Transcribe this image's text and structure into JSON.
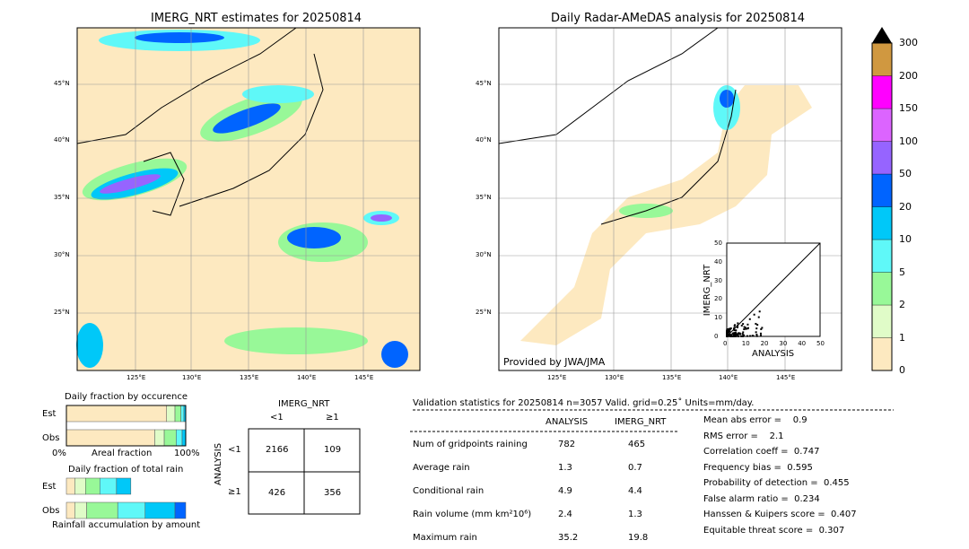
{
  "chart_data": [
    {
      "type": "heatmap",
      "title": "IMERG_NRT estimates for 20250814",
      "lon_ticks": [
        "125°E",
        "130°E",
        "135°E",
        "140°E",
        "145°E"
      ],
      "lat_ticks": [
        "45°N",
        "40°N",
        "35°N",
        "30°N",
        "25°N"
      ]
    },
    {
      "type": "heatmap",
      "title": "Daily Radar-AMeDAS analysis for 20250814",
      "lon_ticks": [
        "125°E",
        "130°E",
        "135°E",
        "140°E",
        "145°E"
      ],
      "lat_ticks": [
        "45°N",
        "40°N",
        "35°N",
        "30°N",
        "25°N"
      ],
      "credit": "Provided by JWA/JMA",
      "inset": {
        "type": "scatter",
        "xlabel": "ANALYSIS",
        "ylabel": "IMERG_NRT",
        "xlim": [
          0,
          50
        ],
        "ylim": [
          0,
          50
        ],
        "ticks": [
          "0",
          "10",
          "20",
          "30",
          "40",
          "50"
        ]
      }
    },
    {
      "type": "colorbar",
      "labels": [
        "0",
        "1",
        "2",
        "5",
        "10",
        "20",
        "50",
        "100",
        "150",
        "200",
        "300"
      ],
      "colors": [
        "#fde9c0",
        "#e0fcc8",
        "#98f898",
        "#5ff8f8",
        "#00c8f8",
        "#0064ff",
        "#9664ff",
        "#dc64ff",
        "#ff00ff",
        "#d09840"
      ]
    },
    {
      "type": "bar",
      "title": "Daily fraction by occurence",
      "categories": [
        "Est",
        "Obs"
      ],
      "xlabel": "Areal fraction",
      "x0": "0%",
      "x1": "100%",
      "series": {
        "Est": [
          0.84,
          0.07,
          0.05,
          0.025,
          0.015
        ],
        "Obs": [
          0.74,
          0.08,
          0.1,
          0.05,
          0.03
        ]
      }
    },
    {
      "type": "bar",
      "title": "Daily fraction of total rain",
      "categories": [
        "Est",
        "Obs"
      ],
      "xlabel": "Rainfall accumulation by amount",
      "series": {
        "Est": [
          0.07,
          0.09,
          0.12,
          0.14,
          0.12
        ],
        "Obs": [
          0.07,
          0.1,
          0.26,
          0.23,
          0.25,
          0.09
        ]
      }
    },
    {
      "type": "table",
      "col_title": "IMERG_NRT",
      "row_title": "ANALYSIS",
      "cols": [
        "<1",
        "≥1"
      ],
      "rows": [
        "<1",
        "≥1"
      ],
      "cells": [
        [
          "2166",
          "109"
        ],
        [
          "426",
          "356"
        ]
      ]
    }
  ],
  "stats": {
    "header": "Validation statistics for 20250814  n=3057 Valid. grid=0.25˚ Units=mm/day.",
    "col1": "ANALYSIS",
    "col2": "IMERG_NRT",
    "rows": [
      [
        "Num of gridpoints raining",
        "782",
        "465"
      ],
      [
        "Average rain",
        "1.3",
        "0.7"
      ],
      [
        "Conditional rain",
        "4.9",
        "4.4"
      ],
      [
        "Rain volume (mm km²10⁶)",
        "2.4",
        "1.3"
      ],
      [
        "Maximum rain",
        "35.2",
        "19.8"
      ]
    ],
    "scores": [
      "Mean abs error =    0.9",
      "RMS error =    2.1",
      "Correlation coeff =  0.747",
      "Frequency bias =  0.595",
      "Probability of detection =  0.455",
      "False alarm ratio =  0.234",
      "Hanssen & Kuipers score =  0.407",
      "Equitable threat score =  0.307"
    ]
  }
}
